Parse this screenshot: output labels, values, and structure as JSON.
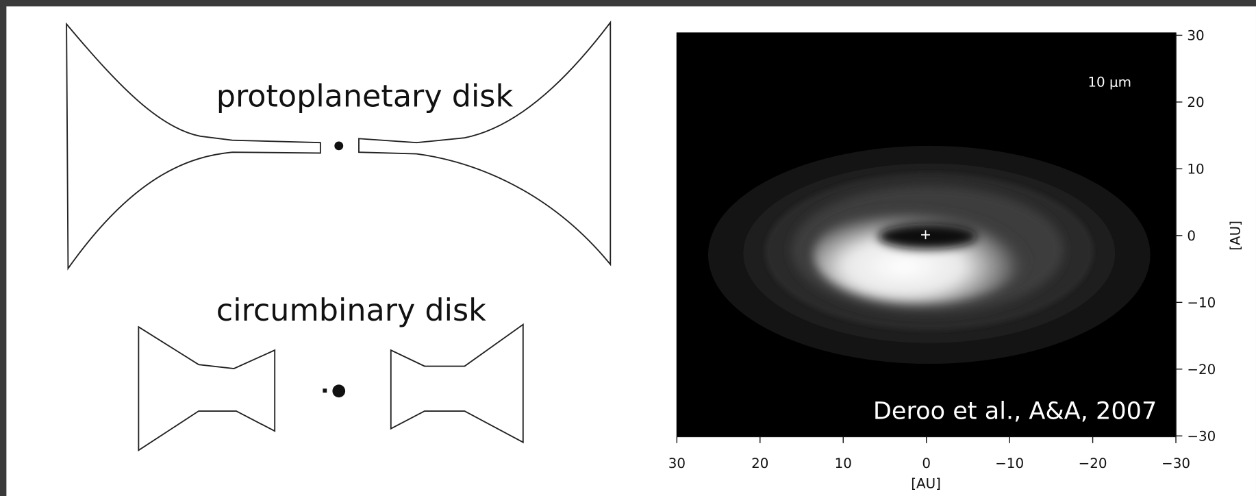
{
  "diagrams": {
    "protoplanetary": {
      "label": "protoplanetary disk"
    },
    "circumbinary": {
      "label": "circumbinary disk"
    }
  },
  "image_panel": {
    "wavelength": "10 μm",
    "caption": "Deroo et al., A&A, 2007",
    "x_axis": {
      "label": "[AU]",
      "ticks": [
        "30",
        "20",
        "10",
        "0",
        "−10",
        "−20",
        "−30"
      ]
    },
    "y_axis": {
      "label": "[AU]",
      "ticks": [
        "30",
        "20",
        "10",
        "0",
        "−10",
        "−20",
        "−30"
      ]
    }
  }
}
